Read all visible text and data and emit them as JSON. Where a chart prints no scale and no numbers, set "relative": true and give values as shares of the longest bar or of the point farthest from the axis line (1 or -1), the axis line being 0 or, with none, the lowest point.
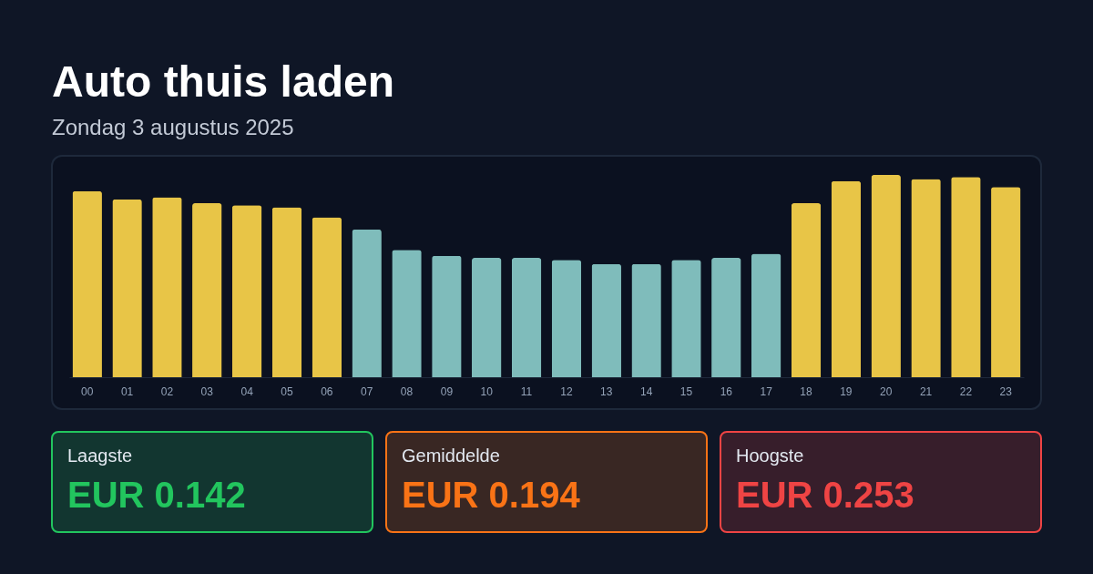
{
  "chart_data": [
    {
      "type": "bar",
      "title": "Auto thuis laden",
      "subtitle": "Zondag 3 augustus 2025",
      "relative": true,
      "categories": [
        "00",
        "01",
        "02",
        "03",
        "04",
        "05",
        "06",
        "07",
        "08",
        "09",
        "10",
        "11",
        "12",
        "13",
        "14",
        "15",
        "16",
        "17",
        "18",
        "19",
        "20",
        "21",
        "22",
        "23"
      ],
      "values": [
        0.92,
        0.88,
        0.89,
        0.86,
        0.85,
        0.84,
        0.79,
        0.73,
        0.63,
        0.6,
        0.59,
        0.59,
        0.58,
        0.56,
        0.56,
        0.58,
        0.59,
        0.61,
        0.86,
        0.97,
        1,
        0.98,
        0.99,
        0.94
      ],
      "colors": [
        "#e8c547",
        "#e8c547",
        "#e8c547",
        "#e8c547",
        "#e8c547",
        "#e8c547",
        "#e8c547",
        "#7fbcbb",
        "#7fbcbb",
        "#7fbcbb",
        "#7fbcbb",
        "#7fbcbb",
        "#7fbcbb",
        "#7fbcbb",
        "#7fbcbb",
        "#7fbcbb",
        "#7fbcbb",
        "#7fbcbb",
        "#e8c547",
        "#e8c547",
        "#e8c547",
        "#e8c547",
        "#e8c547",
        "#e8c547"
      ]
    },
    {
      "type": "other",
      "categories": [
        "Laagste",
        "Gemiddelde",
        "Hoogste"
      ],
      "value_labels": [
        "EUR 0.142",
        "EUR 0.194",
        "EUR 0.253"
      ],
      "colors": [
        "#22c55e",
        "#f97316",
        "#ef4444"
      ]
    }
  ]
}
